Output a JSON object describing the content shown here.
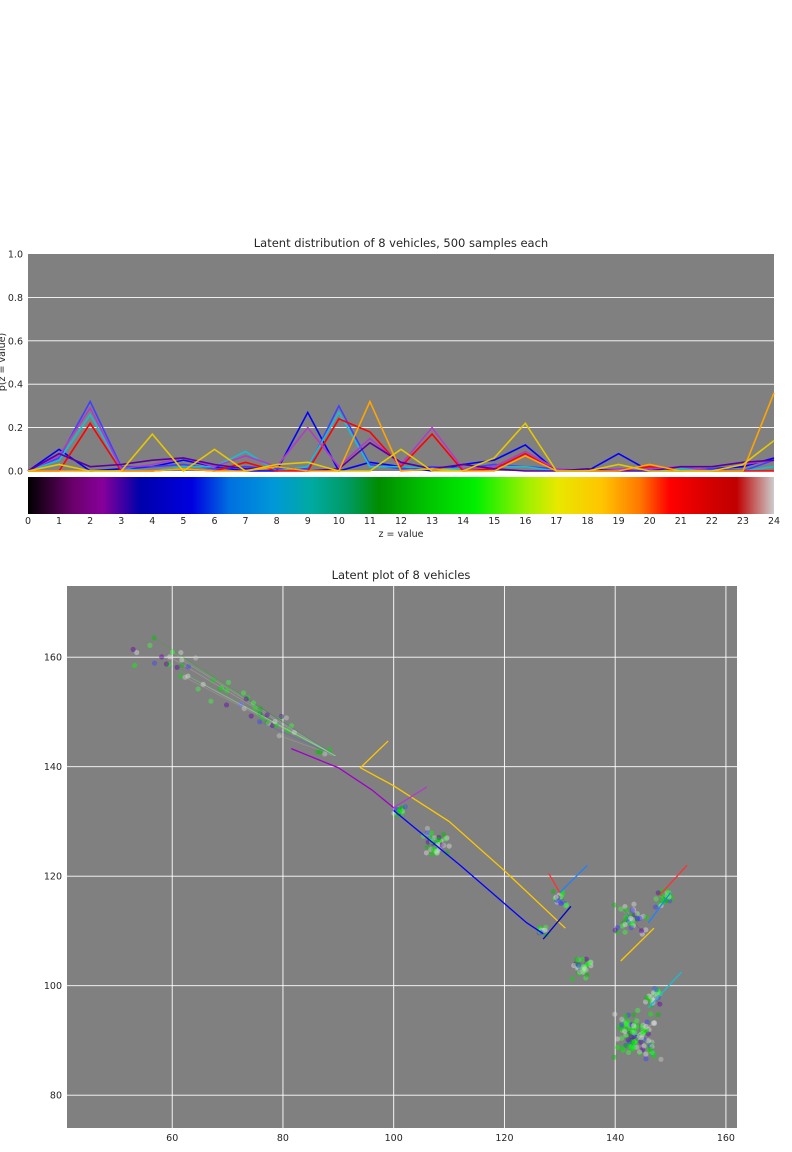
{
  "charts": [
    {
      "type": "line",
      "title": "Latent distribution of 8 vehicles, 500 samples each",
      "xlabel": "z = value",
      "ylabel": "p(z = value)",
      "xlim": [
        0,
        24
      ],
      "ylim": [
        0,
        1.0
      ],
      "x_ticks": [
        "0",
        "1",
        "2",
        "3",
        "4",
        "5",
        "6",
        "7",
        "8",
        "9",
        "10",
        "11",
        "12",
        "13",
        "14",
        "15",
        "16",
        "17",
        "18",
        "19",
        "20",
        "21",
        "22",
        "23",
        "24"
      ],
      "y_ticks": [
        "0.0",
        "0.2",
        "0.4",
        "0.6",
        "0.8",
        "1.0"
      ],
      "grid": true,
      "colorbar": {
        "colormap": "nipy_spectral",
        "range": [
          0,
          24
        ]
      },
      "x": [
        0,
        1,
        2,
        3,
        4,
        5,
        6,
        7,
        8,
        9,
        10,
        11,
        12,
        13,
        14,
        15,
        16,
        17,
        18,
        19,
        20,
        21,
        22,
        23,
        24
      ],
      "series": [
        {
          "color": "#0000ff",
          "values": [
            0.0,
            0.1,
            0.0,
            0.01,
            0.02,
            0.05,
            0.02,
            0.0,
            0.0,
            0.27,
            0.0,
            0.04,
            0.02,
            0.0,
            0.03,
            0.05,
            0.12,
            0.0,
            0.0,
            0.08,
            0.0,
            0.0,
            0.01,
            0.02,
            0.06
          ]
        },
        {
          "color": "#4040ff",
          "values": [
            0.0,
            0.06,
            0.32,
            0.02,
            0.02,
            0.03,
            0.01,
            0.02,
            0.01,
            0.01,
            0.3,
            0.03,
            0.01,
            0.02,
            0.01,
            0.03,
            0.02,
            0.01,
            0.0,
            0.0,
            0.01,
            0.0,
            0.01,
            0.0,
            0.05
          ]
        },
        {
          "color": "#17becf",
          "values": [
            0.0,
            0.05,
            0.26,
            0.01,
            0.0,
            0.02,
            0.02,
            0.09,
            0.0,
            0.02,
            0.27,
            0.02,
            0.02,
            0.01,
            0.01,
            0.02,
            0.02,
            0.0,
            0.0,
            0.01,
            0.0,
            0.01,
            0.0,
            0.0,
            0.02
          ]
        },
        {
          "color": "#ff0000",
          "values": [
            0.0,
            0.0,
            0.22,
            0.0,
            0.0,
            0.01,
            0.0,
            0.04,
            0.0,
            0.0,
            0.24,
            0.18,
            0.02,
            0.17,
            0.0,
            0.01,
            0.08,
            0.0,
            0.0,
            0.0,
            0.02,
            0.0,
            0.0,
            0.0,
            0.0
          ]
        },
        {
          "color": "#b03cc8",
          "values": [
            0.0,
            0.07,
            0.29,
            0.01,
            0.03,
            0.06,
            0.02,
            0.07,
            0.02,
            0.2,
            0.02,
            0.15,
            0.03,
            0.2,
            0.01,
            0.02,
            0.09,
            0.01,
            0.0,
            0.01,
            0.01,
            0.02,
            0.0,
            0.03,
            0.05
          ]
        },
        {
          "color": "#5a00a0",
          "values": [
            0.0,
            0.08,
            0.02,
            0.03,
            0.05,
            0.06,
            0.03,
            0.01,
            0.02,
            0.0,
            0.01,
            0.13,
            0.04,
            0.01,
            0.03,
            0.01,
            0.0,
            0.0,
            0.01,
            0.0,
            0.0,
            0.02,
            0.02,
            0.04,
            0.05
          ]
        },
        {
          "color": "#ffa500",
          "values": [
            0.0,
            0.0,
            0.0,
            0.0,
            0.0,
            0.01,
            0.0,
            0.0,
            0.02,
            0.0,
            0.0,
            0.32,
            0.0,
            0.01,
            0.0,
            0.0,
            0.07,
            0.0,
            0.0,
            0.0,
            0.03,
            0.0,
            0.0,
            0.0,
            0.36
          ]
        },
        {
          "color": "#e6c800",
          "values": [
            0.0,
            0.03,
            0.0,
            0.0,
            0.17,
            0.0,
            0.1,
            0.0,
            0.03,
            0.04,
            0.0,
            0.0,
            0.1,
            0.0,
            0.0,
            0.06,
            0.22,
            0.0,
            0.0,
            0.03,
            0.0,
            0.0,
            0.0,
            0.03,
            0.14
          ]
        }
      ]
    },
    {
      "type": "scatter",
      "title": "Latent plot of 8 vehicles",
      "xlim": [
        41,
        162
      ],
      "ylim": [
        74,
        173
      ],
      "x_ticks": [
        "60",
        "80",
        "100",
        "120",
        "140",
        "160"
      ],
      "y_ticks": [
        "80",
        "100",
        "120",
        "140",
        "160"
      ],
      "grid": true,
      "paths": [
        {
          "color": "#a000c8",
          "points": [
            [
              81.5,
              143.3
            ],
            [
              90,
              139.8
            ],
            [
              96,
              135.8
            ],
            [
              100,
              132.5
            ]
          ]
        },
        {
          "color": "#0000ff",
          "points": [
            [
              100,
              132
            ],
            [
              112,
              122
            ],
            [
              124,
              111.5
            ],
            [
              127,
              109.5
            ]
          ]
        },
        {
          "color": "#ffc800",
          "points": [
            [
              99,
              144.7
            ],
            [
              94,
              139.8
            ],
            [
              100,
              136.5
            ],
            [
              110,
              130
            ],
            [
              120,
              121
            ],
            [
              131,
              110.5
            ]
          ]
        },
        {
          "color": "#b03cc8",
          "points": [
            [
              100,
              132.5
            ],
            [
              106,
              136.3
            ]
          ]
        },
        {
          "color": "#0000c8",
          "points": [
            [
              127,
              108.5
            ],
            [
              132,
              114.5
            ]
          ]
        },
        {
          "color": "#2080ff",
          "points": [
            [
              130,
              117
            ],
            [
              135,
              122
            ]
          ]
        },
        {
          "color": "#ff3030",
          "points": [
            [
              128,
              120.5
            ],
            [
              130,
              117
            ]
          ]
        },
        {
          "color": "#ffc800",
          "points": [
            [
              141,
              104.5
            ],
            [
              147,
              110.5
            ]
          ]
        },
        {
          "color": "#17becf",
          "points": [
            [
              146,
              96
            ],
            [
              152,
              102.5
            ]
          ]
        },
        {
          "color": "#ff3030",
          "points": [
            [
              148,
              116.5
            ],
            [
              153,
              122
            ]
          ]
        },
        {
          "color": "#2080ff",
          "points": [
            [
              146,
              111.5
            ],
            [
              150,
              117
            ]
          ]
        }
      ],
      "clusters": [
        {
          "center": [
            52,
            163
          ],
          "end": [
            89.5,
            142
          ],
          "spread": 3.5,
          "n": 60
        },
        {
          "center": [
            101,
            132
          ],
          "end": [
            101,
            132
          ],
          "spread": 1.2,
          "n": 20
        },
        {
          "center": [
            108,
            126
          ],
          "end": [
            108,
            126
          ],
          "spread": 3.0,
          "n": 40
        },
        {
          "center": [
            127,
            110
          ],
          "end": [
            127,
            110
          ],
          "spread": 1.0,
          "n": 15
        },
        {
          "center": [
            134,
            103
          ],
          "end": [
            134,
            103
          ],
          "spread": 2.5,
          "n": 35
        },
        {
          "center": [
            130,
            116
          ],
          "end": [
            130,
            116
          ],
          "spread": 1.5,
          "n": 20
        },
        {
          "center": [
            149,
            116
          ],
          "end": [
            149,
            116
          ],
          "spread": 2.0,
          "n": 25
        },
        {
          "center": [
            143,
            112
          ],
          "end": [
            143,
            112
          ],
          "spread": 3.5,
          "n": 40
        },
        {
          "center": [
            147,
            98
          ],
          "end": [
            147,
            98
          ],
          "spread": 2.0,
          "n": 25
        },
        {
          "center": [
            144,
            91
          ],
          "end": [
            144,
            91
          ],
          "spread": 5.0,
          "n": 110
        }
      ]
    }
  ]
}
